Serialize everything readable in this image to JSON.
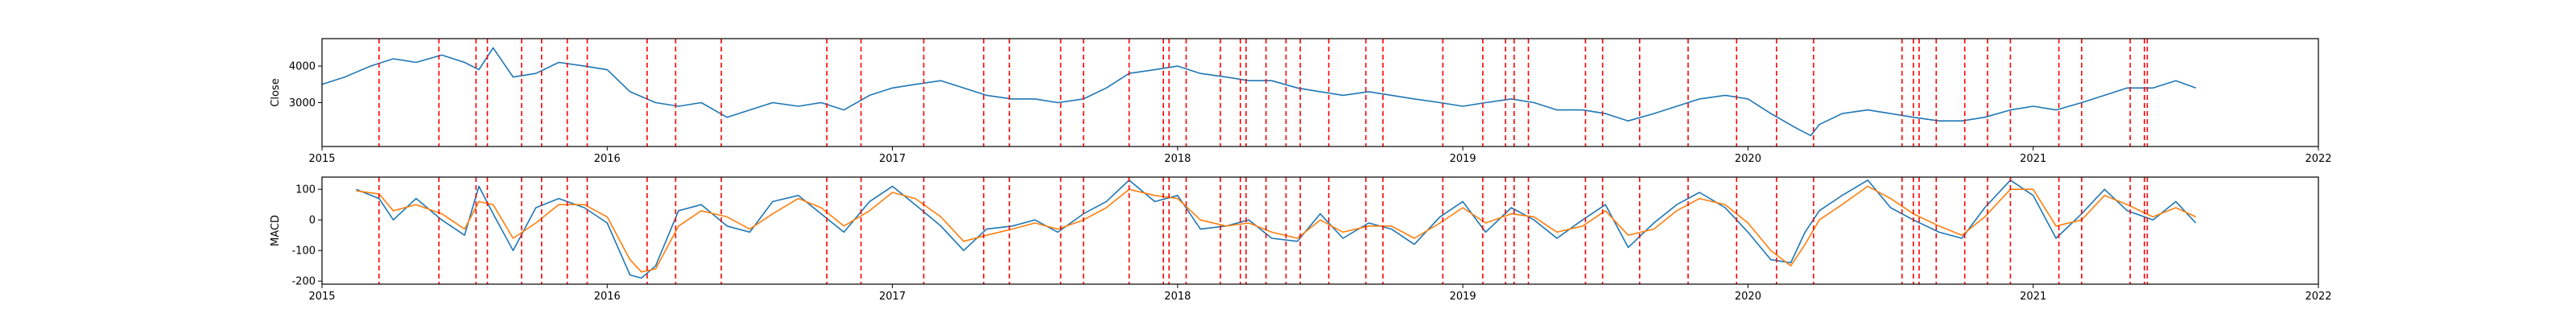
{
  "colors": {
    "close_line": "#1f77b4",
    "macd_line": "#1f77b4",
    "signal_line": "#ff7f0e",
    "event_line": "#ff0000",
    "axes": "#000000"
  },
  "chart_data": [
    {
      "type": "line",
      "panel": "top",
      "ylabel": "Close",
      "xlim": [
        2015.0,
        2022.0
      ],
      "ylim": [
        1800,
        4750
      ],
      "xticks": [
        "2015",
        "2016",
        "2017",
        "2018",
        "2019",
        "2020",
        "2021",
        "2022"
      ],
      "yticks": [
        3000,
        4000
      ],
      "series": [
        {
          "x": [
            2015.0,
            2015.08,
            2015.17,
            2015.25,
            2015.33,
            2015.42,
            2015.5,
            2015.55,
            2015.6,
            2015.67,
            2015.75,
            2015.83,
            2015.92,
            2016.0,
            2016.08,
            2016.17,
            2016.25,
            2016.33,
            2016.42,
            2016.5,
            2016.58,
            2016.67,
            2016.75,
            2016.83,
            2016.92,
            2017.0,
            2017.08,
            2017.17,
            2017.25,
            2017.33,
            2017.42,
            2017.5,
            2017.58,
            2017.67,
            2017.75,
            2017.83,
            2017.92,
            2018.0,
            2018.08,
            2018.17,
            2018.25,
            2018.33,
            2018.42,
            2018.5,
            2018.58,
            2018.67,
            2018.75,
            2018.83,
            2018.92,
            2019.0,
            2019.08,
            2019.17,
            2019.25,
            2019.33,
            2019.42,
            2019.5,
            2019.58,
            2019.67,
            2019.75,
            2019.83,
            2019.92,
            2020.0,
            2020.08,
            2020.17,
            2020.22,
            2020.25,
            2020.33,
            2020.42,
            2020.5,
            2020.58,
            2020.67,
            2020.75,
            2020.83,
            2020.92,
            2021.0,
            2021.08,
            2021.17,
            2021.25,
            2021.33,
            2021.42,
            2021.5,
            2021.57
          ],
          "y": [
            3500,
            3700,
            4000,
            4200,
            4100,
            4300,
            4100,
            3900,
            4500,
            3700,
            3800,
            4100,
            4000,
            3900,
            3300,
            3000,
            2900,
            3000,
            2600,
            2800,
            3000,
            2900,
            3000,
            2800,
            3200,
            3400,
            3500,
            3600,
            3400,
            3200,
            3100,
            3100,
            3000,
            3100,
            3400,
            3800,
            3900,
            4000,
            3800,
            3700,
            3600,
            3600,
            3400,
            3300,
            3200,
            3300,
            3200,
            3100,
            3000,
            2900,
            3000,
            3100,
            3000,
            2800,
            2800,
            2700,
            2500,
            2700,
            2900,
            3100,
            3200,
            3100,
            2700,
            2300,
            2100,
            2400,
            2700,
            2800,
            2700,
            2600,
            2500,
            2500,
            2600,
            2800,
            2900,
            2800,
            3000,
            3200,
            3400,
            3400,
            3600,
            3400
          ]
        }
      ]
    },
    {
      "type": "line",
      "panel": "bottom",
      "ylabel": "MACD",
      "xlim": [
        2015.0,
        2022.0
      ],
      "ylim": [
        -210,
        140
      ],
      "xticks": [
        "2015",
        "2016",
        "2017",
        "2018",
        "2019",
        "2020",
        "2021",
        "2022"
      ],
      "yticks": [
        -200,
        -100,
        0,
        100
      ],
      "series": [
        {
          "x": [
            2015.12,
            2015.2,
            2015.25,
            2015.33,
            2015.42,
            2015.5,
            2015.55,
            2015.6,
            2015.67,
            2015.75,
            2015.83,
            2015.92,
            2016.0,
            2016.08,
            2016.12,
            2016.17,
            2016.25,
            2016.33,
            2016.42,
            2016.5,
            2016.58,
            2016.67,
            2016.75,
            2016.83,
            2016.92,
            2017.0,
            2017.08,
            2017.17,
            2017.25,
            2017.33,
            2017.42,
            2017.5,
            2017.58,
            2017.67,
            2017.75,
            2017.83,
            2017.92,
            2018.0,
            2018.08,
            2018.17,
            2018.25,
            2018.33,
            2018.42,
            2018.5,
            2018.58,
            2018.67,
            2018.75,
            2018.83,
            2018.92,
            2019.0,
            2019.08,
            2019.17,
            2019.25,
            2019.33,
            2019.42,
            2019.5,
            2019.58,
            2019.67,
            2019.75,
            2019.83,
            2019.92,
            2020.0,
            2020.08,
            2020.15,
            2020.2,
            2020.25,
            2020.33,
            2020.42,
            2020.5,
            2020.58,
            2020.67,
            2020.75,
            2020.83,
            2020.92,
            2021.0,
            2021.08,
            2021.17,
            2021.25,
            2021.33,
            2021.42,
            2021.5,
            2021.57
          ],
          "y": [
            100,
            70,
            0,
            70,
            0,
            -50,
            110,
            20,
            -100,
            40,
            70,
            40,
            -10,
            -180,
            -190,
            -150,
            30,
            50,
            -20,
            -40,
            60,
            80,
            20,
            -40,
            60,
            110,
            50,
            -20,
            -100,
            -30,
            -20,
            0,
            -40,
            20,
            60,
            130,
            60,
            80,
            -30,
            -20,
            0,
            -60,
            -70,
            20,
            -60,
            -10,
            -30,
            -80,
            10,
            60,
            -40,
            40,
            0,
            -60,
            0,
            50,
            -90,
            -10,
            50,
            90,
            40,
            -40,
            -130,
            -140,
            -40,
            30,
            80,
            130,
            40,
            0,
            -40,
            -60,
            40,
            130,
            80,
            -60,
            20,
            100,
            30,
            0,
            60,
            -10
          ]
        },
        {
          "x": [
            2015.12,
            2015.2,
            2015.25,
            2015.33,
            2015.42,
            2015.5,
            2015.55,
            2015.6,
            2015.67,
            2015.75,
            2015.83,
            2015.92,
            2016.0,
            2016.08,
            2016.12,
            2016.17,
            2016.25,
            2016.33,
            2016.42,
            2016.5,
            2016.58,
            2016.67,
            2016.75,
            2016.83,
            2016.92,
            2017.0,
            2017.08,
            2017.17,
            2017.25,
            2017.33,
            2017.42,
            2017.5,
            2017.58,
            2017.67,
            2017.75,
            2017.83,
            2017.92,
            2018.0,
            2018.08,
            2018.17,
            2018.25,
            2018.33,
            2018.42,
            2018.5,
            2018.58,
            2018.67,
            2018.75,
            2018.83,
            2018.92,
            2019.0,
            2019.08,
            2019.17,
            2019.25,
            2019.33,
            2019.42,
            2019.5,
            2019.58,
            2019.67,
            2019.75,
            2019.83,
            2019.92,
            2020.0,
            2020.08,
            2020.15,
            2020.2,
            2020.25,
            2020.33,
            2020.42,
            2020.5,
            2020.58,
            2020.67,
            2020.75,
            2020.83,
            2020.92,
            2021.0,
            2021.08,
            2021.17,
            2021.25,
            2021.33,
            2021.42,
            2021.5,
            2021.57
          ],
          "y": [
            95,
            85,
            30,
            50,
            20,
            -30,
            60,
            50,
            -60,
            -10,
            50,
            50,
            10,
            -130,
            -170,
            -160,
            -20,
            30,
            10,
            -30,
            20,
            70,
            40,
            -20,
            30,
            90,
            70,
            10,
            -70,
            -50,
            -30,
            -10,
            -30,
            0,
            40,
            100,
            80,
            70,
            0,
            -20,
            -10,
            -40,
            -60,
            0,
            -40,
            -20,
            -20,
            -60,
            -10,
            40,
            -10,
            20,
            10,
            -40,
            -20,
            30,
            -50,
            -30,
            30,
            70,
            50,
            -10,
            -100,
            -150,
            -80,
            0,
            50,
            110,
            70,
            20,
            -20,
            -50,
            10,
            100,
            100,
            -20,
            0,
            80,
            50,
            10,
            40,
            10
          ]
        }
      ]
    }
  ],
  "event_lines": [
    2015.2,
    2015.41,
    2015.54,
    2015.58,
    2015.7,
    2015.77,
    2015.86,
    2015.93,
    2016.14,
    2016.24,
    2016.4,
    2016.77,
    2016.89,
    2017.11,
    2017.32,
    2017.41,
    2017.59,
    2017.67,
    2017.83,
    2017.95,
    2017.97,
    2018.03,
    2018.15,
    2018.22,
    2018.24,
    2018.31,
    2018.38,
    2018.43,
    2018.53,
    2018.66,
    2018.72,
    2018.93,
    2019.07,
    2019.15,
    2019.18,
    2019.23,
    2019.43,
    2019.49,
    2019.62,
    2019.79,
    2019.96,
    2020.1,
    2020.23,
    2020.54,
    2020.58,
    2020.6,
    2020.66,
    2020.76,
    2020.84,
    2020.92,
    2021.09,
    2021.17,
    2021.34,
    2021.39,
    2021.4
  ]
}
